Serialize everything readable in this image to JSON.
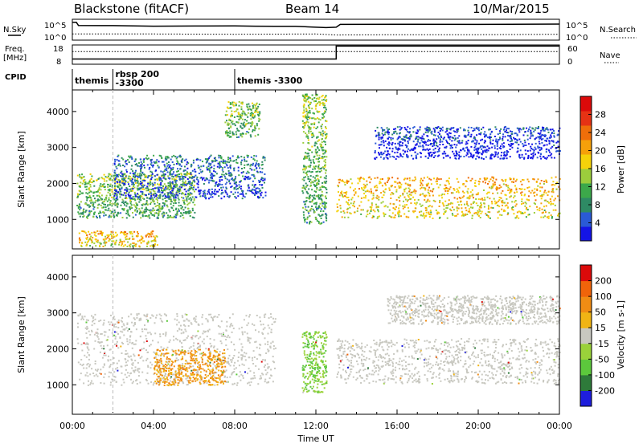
{
  "header": {
    "station": "Blackstone (fitACF)",
    "beam": "Beam 14",
    "date": "10/Mar/2015"
  },
  "panel_labels": {
    "nsky": "N.Sky",
    "nsearch": "N.Search",
    "freq_line1": "Freq.",
    "freq_line2": "[MHz]",
    "nave": "Nave",
    "cpid": "CPID"
  },
  "aux_ticks": {
    "nsky_top": "10^5",
    "nsky_bottom": "10^0",
    "nsearch_top": "10^5",
    "nsearch_bottom": "10^0",
    "freq_top": "18",
    "freq_bottom": "8",
    "nave_top": "60",
    "nave_bottom": "0"
  },
  "cpid_segments": [
    {
      "label": "themis",
      "start_hour": 0.0
    },
    {
      "label": "rbsp 200",
      "label2": "-3300",
      "start_hour": 2.0
    },
    {
      "label": "themis -3300",
      "start_hour": 8.0
    }
  ],
  "colors": {
    "power_scale": [
      "#1414e6",
      "#2a5ad6",
      "#2e8a64",
      "#3ca84a",
      "#9ccd3c",
      "#f5d20a",
      "#f5a00a",
      "#f06e0a",
      "#e63214",
      "#dc0a0a"
    ],
    "velocity_scale": [
      "#1e1edc",
      "#2e7a3a",
      "#5cc83c",
      "#9ad23a",
      "#c8c8c0",
      "#f0b414",
      "#f08c14",
      "#f0640a",
      "#dc0a0a"
    ]
  },
  "chart_data": [
    {
      "type": "line",
      "title": "N.Sky / N.Search",
      "x_range_hours": [
        0,
        24
      ],
      "series": [
        {
          "name": "N.Sky",
          "style": "solid",
          "x": [
            0,
            0.2,
            0.3,
            2,
            4,
            6,
            8,
            9,
            10,
            11,
            12,
            12.5,
            13,
            13.2,
            16,
            20,
            24
          ],
          "y_log10": [
            4.6,
            4.6,
            3.7,
            3.65,
            3.5,
            3.55,
            3.6,
            3.5,
            3.45,
            3.45,
            3.2,
            3.1,
            3.2,
            4.0,
            4.05,
            4.0,
            4.1
          ]
        },
        {
          "name": "N.Search",
          "style": "dotted",
          "x": [
            0,
            4,
            8,
            12,
            13,
            16,
            20,
            24
          ],
          "y_log10": [
            1.3,
            1.3,
            1.2,
            1.3,
            1.0,
            1.1,
            1.1,
            1.2
          ]
        }
      ],
      "ylim_log10": [
        0,
        5
      ]
    },
    {
      "type": "line",
      "title": "Freq. / Nave",
      "x_range_hours": [
        0,
        24
      ],
      "series": [
        {
          "name": "Freq. [MHz]",
          "style": "solid",
          "x": [
            0,
            13,
            13,
            24
          ],
          "y": [
            10.5,
            10.5,
            17.8,
            17.8
          ]
        },
        {
          "name": "Nave",
          "style": "dotted",
          "x": [
            0,
            24
          ],
          "y": [
            40,
            40
          ]
        }
      ],
      "freq_ylim": [
        8,
        18
      ],
      "nave_ylim": [
        0,
        60
      ]
    },
    {
      "type": "heatmap",
      "title": "Power",
      "ylabel": "Slant Range [km]",
      "colorbar_label": "Power [dB]",
      "colorbar_ticks": [
        "4",
        "8",
        "12",
        "16",
        "20",
        "24",
        "28"
      ],
      "x_range_hours": [
        0,
        24
      ],
      "ylim": [
        180,
        4600
      ],
      "y_ticks": [
        "1000",
        "2000",
        "3000",
        "4000"
      ],
      "features": [
        {
          "name": "E-region band",
          "start_h": 0.3,
          "end_h": 4.2,
          "range_km": [
            250,
            700
          ],
          "level": "high"
        },
        {
          "name": "Main band early",
          "start_h": 0.2,
          "end_h": 6.0,
          "range_km": [
            1050,
            2300
          ],
          "level": "mid"
        },
        {
          "name": "Upper band",
          "start_h": 2.0,
          "end_h": 9.5,
          "range_km": [
            1600,
            2800
          ],
          "level": "low-mid"
        },
        {
          "name": "High-range patch",
          "start_h": 7.5,
          "end_h": 9.2,
          "range_km": [
            3300,
            4300
          ],
          "level": "mid"
        },
        {
          "name": "Noon feature",
          "start_h": 11.3,
          "end_h": 12.5,
          "range_km": [
            900,
            4500
          ],
          "level": "mid"
        },
        {
          "name": "Afternoon band",
          "start_h": 13.0,
          "end_h": 24.0,
          "range_km": [
            1050,
            2200
          ],
          "level": "high"
        },
        {
          "name": "Evening arc",
          "start_h": 14.8,
          "end_h": 24.0,
          "range_km": [
            2700,
            3600
          ],
          "level": "low"
        }
      ]
    },
    {
      "type": "heatmap",
      "title": "Velocity",
      "ylabel": "Slant Range [km]",
      "xlabel": "Time UT",
      "colorbar_label": "Velocity [m s-1]",
      "colorbar_ticks": [
        "-200",
        "-100",
        "-50",
        "-15",
        "15",
        "50",
        "100",
        "200"
      ],
      "x_range_hours": [
        0,
        24
      ],
      "x_ticks": [
        "00:00",
        "04:00",
        "08:00",
        "12:00",
        "16:00",
        "20:00",
        "00:00"
      ],
      "ylim": [
        180,
        4600
      ],
      "y_ticks": [
        "1000",
        "2000",
        "3000",
        "4000"
      ],
      "features": [
        {
          "name": "Low-velocity band",
          "start_h": 0.2,
          "end_h": 10.0,
          "range_km": [
            1000,
            3000
          ],
          "velocity": "-15..15"
        },
        {
          "name": "Westward flow patch",
          "start_h": 4.0,
          "end_h": 7.5,
          "range_km": [
            1000,
            2000
          ],
          "velocity": "-50"
        },
        {
          "name": "Noon positive flow",
          "start_h": 11.3,
          "end_h": 12.5,
          "range_km": [
            800,
            2500
          ],
          "velocity": "50"
        },
        {
          "name": "Afternoon band",
          "start_h": 13.0,
          "end_h": 24.0,
          "range_km": [
            1050,
            2300
          ],
          "velocity": "-15..15"
        },
        {
          "name": "Evening arc",
          "start_h": 15.5,
          "end_h": 24.0,
          "range_km": [
            2700,
            3500
          ],
          "velocity": "-15..15"
        }
      ]
    }
  ]
}
